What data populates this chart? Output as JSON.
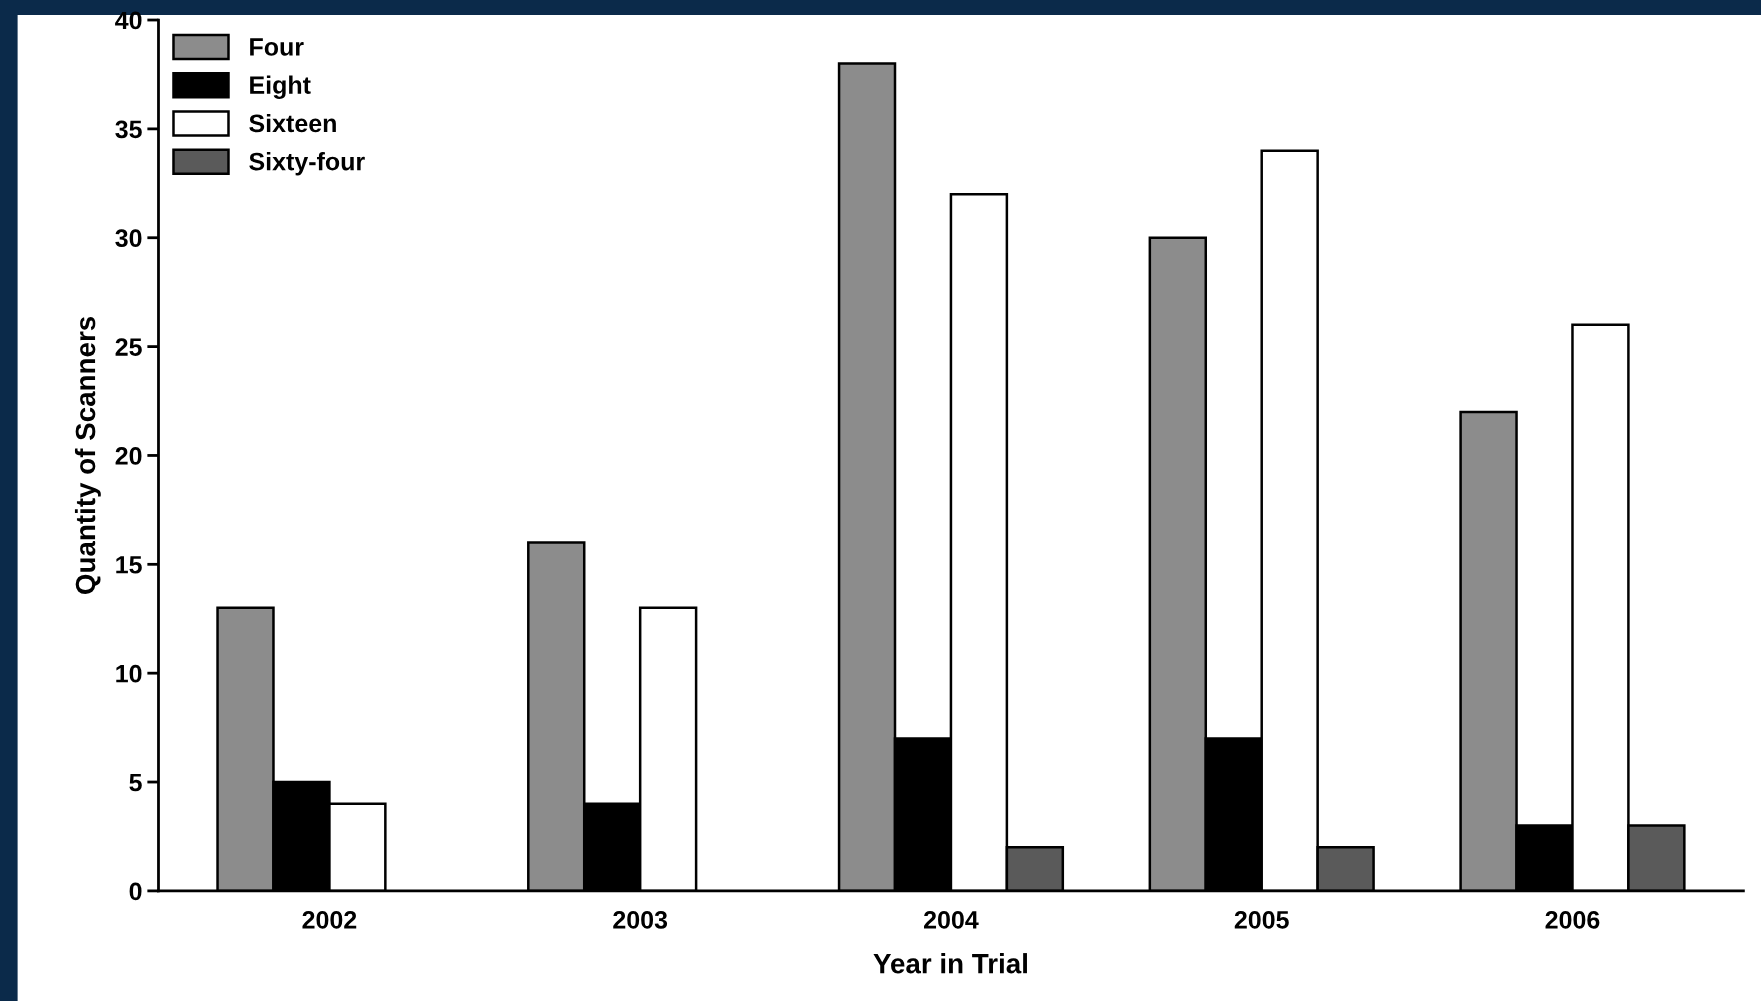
{
  "chart_data": {
    "type": "bar",
    "xlabel": "Year in Trial",
    "ylabel": "Quantity of Scanners",
    "categories": [
      "2002",
      "2003",
      "2004",
      "2005",
      "2006"
    ],
    "series": [
      {
        "name": "Four",
        "color": "#8c8c8c",
        "values": [
          13,
          16,
          38,
          30,
          22
        ]
      },
      {
        "name": "Eight",
        "color": "#000000",
        "values": [
          5,
          4,
          7,
          7,
          3
        ]
      },
      {
        "name": "Sixteen",
        "color": "#ffffff",
        "values": [
          4,
          13,
          32,
          34,
          26
        ]
      },
      {
        "name": "Sixty-four",
        "color": "#5a5a5a",
        "values": [
          null,
          null,
          2,
          2,
          3
        ]
      }
    ],
    "ylim": [
      0,
      40
    ],
    "yticks": [
      0,
      5,
      10,
      15,
      20,
      25,
      30,
      35,
      40
    ],
    "grid": false,
    "legend": "top left"
  }
}
